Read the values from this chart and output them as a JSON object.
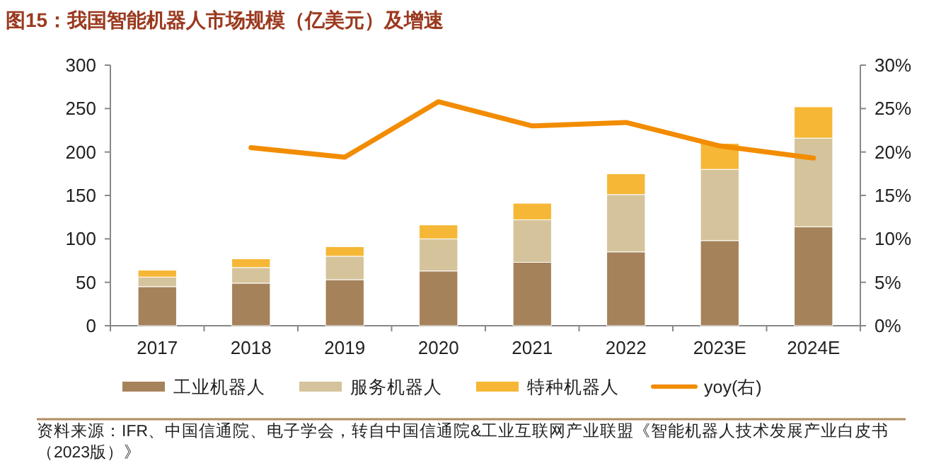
{
  "chart_data": {
    "type": "bar",
    "stacked": true,
    "title": "图15：我国智能机器人市场规模（亿美元）及增速",
    "categories": [
      "2017",
      "2018",
      "2019",
      "2020",
      "2021",
      "2022",
      "2023E",
      "2024E"
    ],
    "series": [
      {
        "name": "工业机器人",
        "color": "#a5825a",
        "values": [
          45,
          49,
          53,
          63,
          73,
          85,
          98,
          114
        ]
      },
      {
        "name": "服务机器人",
        "color": "#d5c39b",
        "values": [
          11,
          18,
          27,
          37,
          49,
          66,
          82,
          102
        ]
      },
      {
        "name": "特种机器人",
        "color": "#f5b735",
        "values": [
          8,
          10,
          11,
          16,
          19,
          24,
          30,
          36
        ]
      },
      {
        "name": "yoy(右)",
        "type": "line",
        "axis": "y2",
        "color": "#f28c00",
        "values": [
          null,
          20.5,
          19.4,
          25.8,
          23.0,
          23.4,
          20.7,
          19.3
        ]
      }
    ],
    "ylim": [
      0,
      300
    ],
    "yticks": [
      0,
      50,
      100,
      150,
      200,
      250,
      300
    ],
    "y2lim": [
      0,
      30
    ],
    "y2ticks": [
      {
        "value": 0,
        "label": "0%"
      },
      {
        "value": 5,
        "label": "5%"
      },
      {
        "value": 10,
        "label": "10%"
      },
      {
        "value": 15,
        "label": "15%"
      },
      {
        "value": 20,
        "label": "20%"
      },
      {
        "value": 25,
        "label": "25%"
      },
      {
        "value": 30,
        "label": "30%"
      }
    ],
    "legend": "bottom",
    "grid": false,
    "marker": "none",
    "line_style": "solid",
    "annotations": [
      "资料来源：IFR、中国信通院、电子学会，转自中国信通院&工业互联网产业联盟《智能机器人技术发展产业白皮书（2023版）》"
    ]
  }
}
